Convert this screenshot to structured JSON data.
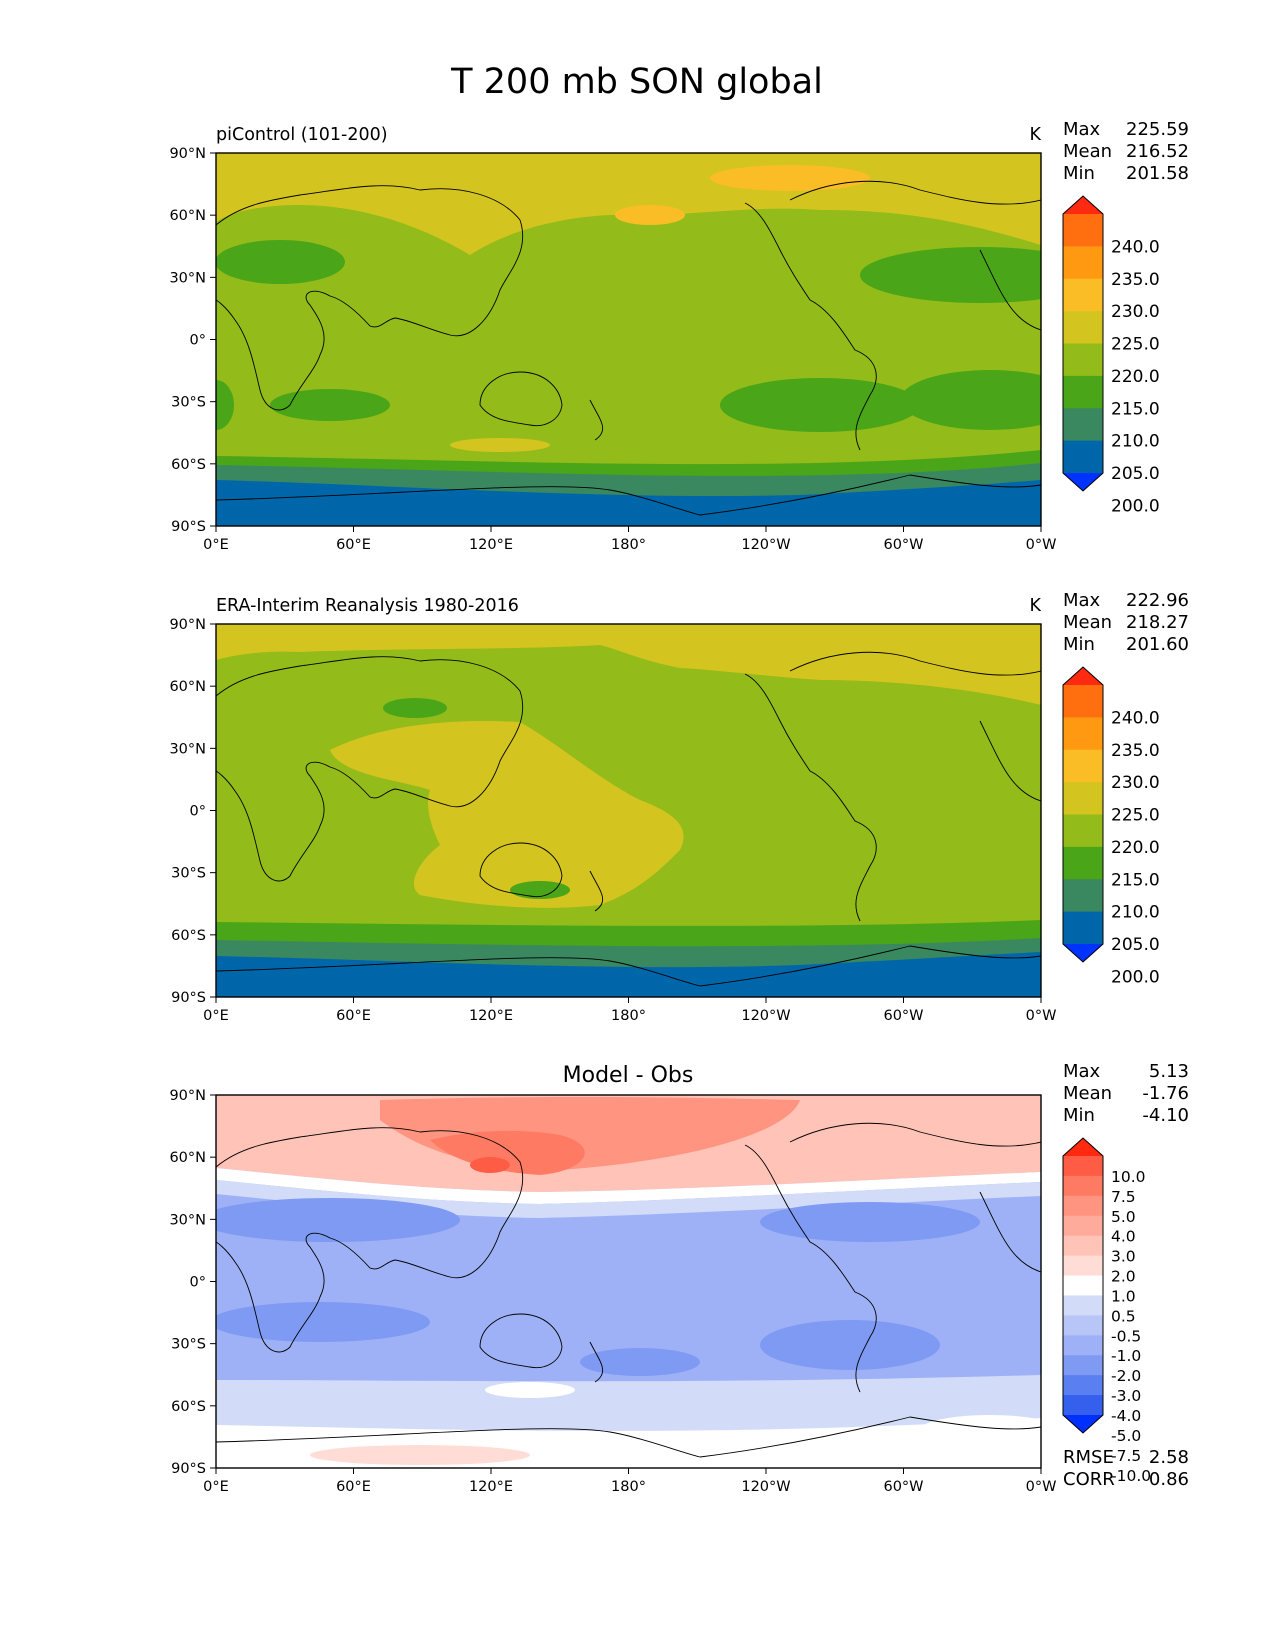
{
  "figure": {
    "title": "T 200 mb SON global"
  },
  "colors": {
    "abs_levels": [
      "#0033ff",
      "#0066aa",
      "#3a8860",
      "#4aa519",
      "#93bb1a",
      "#d4c41f",
      "#fbbd25",
      "#ff9911",
      "#ff6f0f",
      "#ff2a10"
    ],
    "diff_levels": [
      "#0030ff",
      "#3560ee",
      "#5a7ff0",
      "#7f9af3",
      "#9fb1f6",
      "#b7c6f7",
      "#d2dcf9",
      "#ffffff",
      "#ffdcd6",
      "#ffc3b8",
      "#ffab9b",
      "#ff9480",
      "#ff7a62",
      "#ff5c45",
      "#ff2a10"
    ],
    "land": "none",
    "coast": "#000000"
  },
  "chart_data": [
    {
      "type": "heatmap",
      "title": "piControl (101-200)",
      "units": "K",
      "stats": {
        "max_label": "Max",
        "max": "225.59",
        "mean_label": "Mean",
        "mean": "216.52",
        "min_label": "Min",
        "min": "201.58"
      },
      "colorbar": {
        "levels": [
          "240.0",
          "235.0",
          "230.0",
          "225.0",
          "220.0",
          "215.0",
          "210.0",
          "205.0",
          "200.0"
        ]
      },
      "xticks": [
        "0°E",
        "60°E",
        "120°E",
        "180°",
        "120°W",
        "60°W",
        "0°W"
      ],
      "yticks": [
        "90°N",
        "60°N",
        "30°N",
        "0°",
        "30°S",
        "60°S",
        "90°S"
      ],
      "xlim": [
        0,
        360
      ],
      "ylim": [
        -90,
        90
      ],
      "grid": false
    },
    {
      "type": "heatmap",
      "title": "ERA-Interim Reanalysis 1980-2016",
      "units": "K",
      "stats": {
        "max_label": "Max",
        "max": "222.96",
        "mean_label": "Mean",
        "mean": "218.27",
        "min_label": "Min",
        "min": "201.60"
      },
      "colorbar": {
        "levels": [
          "240.0",
          "235.0",
          "230.0",
          "225.0",
          "220.0",
          "215.0",
          "210.0",
          "205.0",
          "200.0"
        ]
      },
      "xticks": [
        "0°E",
        "60°E",
        "120°E",
        "180°",
        "120°W",
        "60°W",
        "0°W"
      ],
      "yticks": [
        "90°N",
        "60°N",
        "30°N",
        "0°",
        "30°S",
        "60°S",
        "90°S"
      ],
      "xlim": [
        0,
        360
      ],
      "ylim": [
        -90,
        90
      ],
      "grid": false
    },
    {
      "type": "heatmap",
      "title": "Model - Obs",
      "units": "",
      "stats": {
        "max_label": "Max",
        "max": "5.13",
        "mean_label": "Mean",
        "mean": "-1.76",
        "min_label": "Min",
        "min": "-4.10"
      },
      "colorbar": {
        "levels": [
          "10.0",
          "7.5",
          "5.0",
          "4.0",
          "3.0",
          "2.0",
          "1.0",
          "0.5",
          "-0.5",
          "-1.0",
          "-2.0",
          "-3.0",
          "-4.0",
          "-5.0",
          "-7.5",
          "-10.0"
        ]
      },
      "metrics": {
        "rmse_label": "RMSE",
        "rmse": "2.58",
        "corr_label": "CORR",
        "corr": "0.86"
      },
      "xticks": [
        "0°E",
        "60°E",
        "120°E",
        "180°",
        "120°W",
        "60°W",
        "0°W"
      ],
      "yticks": [
        "90°N",
        "60°N",
        "30°N",
        "0°",
        "30°S",
        "60°S",
        "90°S"
      ],
      "xlim": [
        0,
        360
      ],
      "ylim": [
        -90,
        90
      ],
      "grid": false
    }
  ]
}
